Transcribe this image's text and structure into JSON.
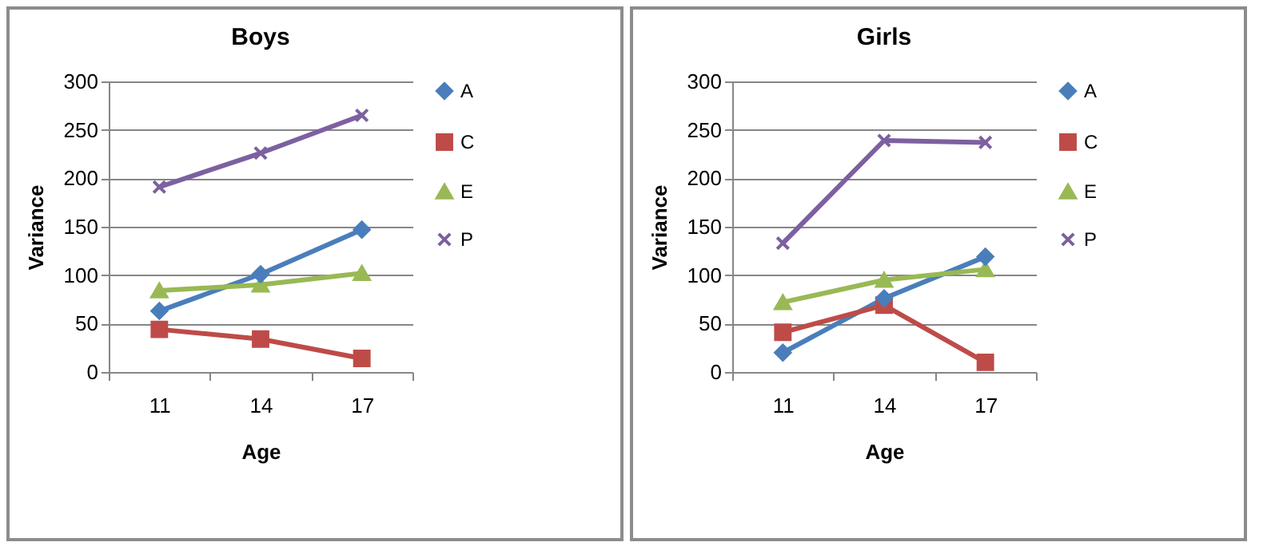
{
  "chart_data": [
    {
      "type": "line",
      "title": "Boys",
      "xlabel": "Age",
      "ylabel": "Variance",
      "categories": [
        "11",
        "14",
        "17"
      ],
      "ylim": [
        0,
        300
      ],
      "yticks": [
        0,
        50,
        100,
        150,
        200,
        250,
        300
      ],
      "grid": "y",
      "legend": "right",
      "series": [
        {
          "name": "A",
          "color": "#4a7ebb",
          "marker": "diamond",
          "values": [
            63,
            101,
            147
          ]
        },
        {
          "name": "C",
          "color": "#be4b48",
          "marker": "square",
          "values": [
            44,
            34,
            14
          ]
        },
        {
          "name": "E",
          "color": "#98b954",
          "marker": "triangle",
          "values": [
            84,
            90,
            102
          ]
        },
        {
          "name": "P",
          "color": "#7d60a0",
          "marker": "cross",
          "values": [
            191,
            226,
            265
          ]
        }
      ]
    },
    {
      "type": "line",
      "title": "Girls",
      "xlabel": "Age",
      "ylabel": "Variance",
      "categories": [
        "11",
        "14",
        "17"
      ],
      "ylim": [
        0,
        300
      ],
      "yticks": [
        0,
        50,
        100,
        150,
        200,
        250,
        300
      ],
      "grid": "y",
      "legend": "right",
      "series": [
        {
          "name": "A",
          "color": "#4a7ebb",
          "marker": "diamond",
          "values": [
            20,
            76,
            119
          ]
        },
        {
          "name": "C",
          "color": "#be4b48",
          "marker": "square",
          "values": [
            41,
            69,
            10
          ]
        },
        {
          "name": "E",
          "color": "#98b954",
          "marker": "triangle",
          "values": [
            72,
            95,
            106
          ]
        },
        {
          "name": "P",
          "color": "#7d60a0",
          "marker": "cross",
          "values": [
            133,
            239,
            237
          ]
        }
      ]
    }
  ]
}
